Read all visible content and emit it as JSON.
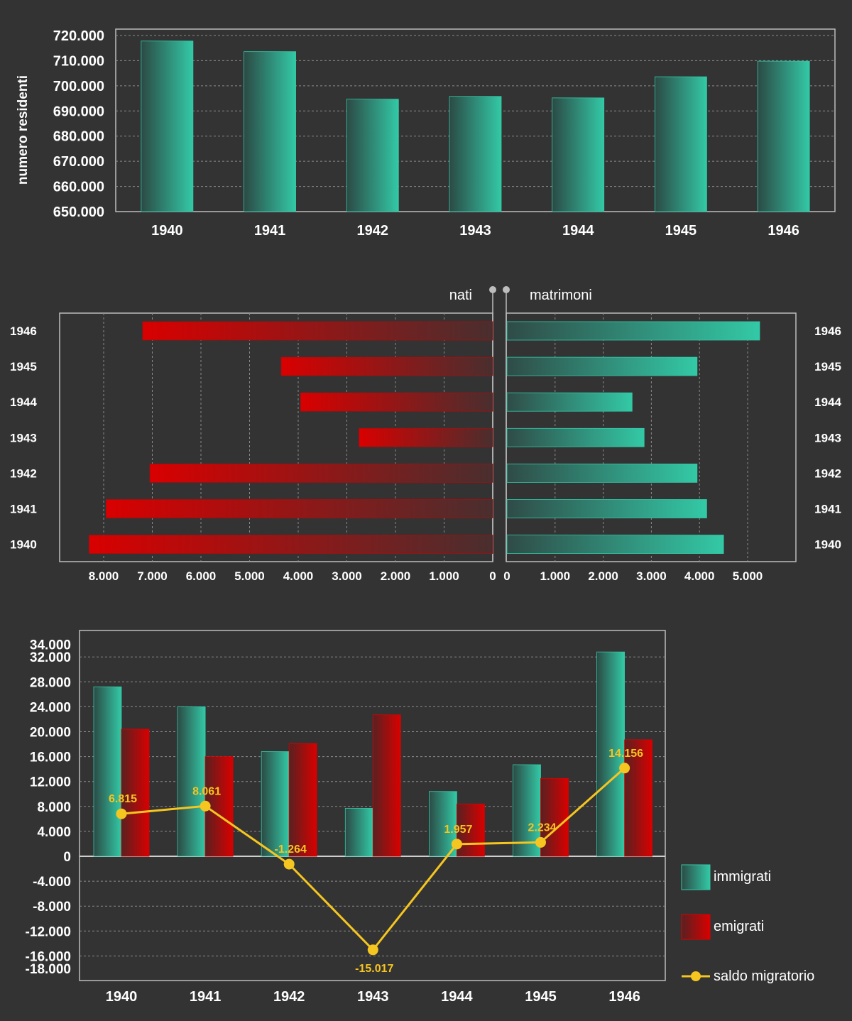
{
  "chart_data": [
    {
      "type": "bar",
      "ylabel": "numero residenti",
      "ylim": [
        650000,
        720000
      ],
      "yticks": [
        "720.000",
        "710.000",
        "700.000",
        "690.000",
        "680.000",
        "670.000",
        "660.000",
        "650.000"
      ],
      "ytick_values": [
        720000,
        710000,
        700000,
        690000,
        680000,
        670000,
        660000,
        650000
      ],
      "categories": [
        "1940",
        "1941",
        "1942",
        "1943",
        "1944",
        "1945",
        "1946"
      ],
      "values": [
        717800,
        713600,
        694700,
        695800,
        695200,
        703600,
        709800
      ],
      "grid": true,
      "colors": {
        "bar_light": "#33c9a6",
        "bar_dark": "#2b4a45"
      }
    },
    {
      "type": "bar",
      "orientation": "horizontal",
      "left_label": "nati",
      "right_label": "matrimoni",
      "categories": [
        "1946",
        "1945",
        "1944",
        "1943",
        "1942",
        "1941",
        "1940"
      ],
      "series": [
        {
          "name": "nati",
          "values": [
            7200,
            4350,
            3950,
            2750,
            7050,
            7950,
            8300
          ]
        },
        {
          "name": "matrimoni",
          "values": [
            5250,
            3950,
            2600,
            2850,
            3950,
            4150,
            4500
          ]
        }
      ],
      "left_xticks": [
        "8.000",
        "7.000",
        "6.000",
        "5.000",
        "4.000",
        "3.000",
        "2.000",
        "1.000",
        "0"
      ],
      "left_xtick_values": [
        8000,
        7000,
        6000,
        5000,
        4000,
        3000,
        2000,
        1000,
        0
      ],
      "right_xticks": [
        "0",
        "1.000",
        "2.000",
        "3.000",
        "4.000",
        "5.000"
      ],
      "right_xtick_values": [
        0,
        1000,
        2000,
        3000,
        4000,
        5000
      ],
      "left_xlim": [
        0,
        9000
      ],
      "right_xlim": [
        0,
        6000
      ],
      "grid": true,
      "colors": {
        "red_light": "#d90000",
        "red_dark": "#552b2b",
        "teal_light": "#33c9a6",
        "teal_dark": "#2b4a45"
      }
    },
    {
      "type": "bar",
      "categories": [
        "1940",
        "1941",
        "1942",
        "1943",
        "1944",
        "1945",
        "1946"
      ],
      "series": [
        {
          "name": "immigrati",
          "values": [
            27200,
            24000,
            16800,
            7700,
            10400,
            14700,
            32800
          ]
        },
        {
          "name": "emigrati",
          "values": [
            20400,
            16000,
            18100,
            22700,
            8400,
            12500,
            18700
          ]
        },
        {
          "name": "saldo migratorio",
          "type": "line",
          "values": [
            6815,
            8061,
            -1264,
            -15017,
            1957,
            2234,
            14156
          ],
          "labels": [
            "6.815",
            "8.061",
            "-1.264",
            "-15.017",
            "1.957",
            "2.234",
            "14.156"
          ]
        }
      ],
      "ylim": [
        -18000,
        34000
      ],
      "yticks": [
        "34.000",
        "32.000",
        "28.000",
        "24.000",
        "20.000",
        "16.000",
        "12.000",
        "8.000",
        "4.000",
        "0",
        "-4.000",
        "-8.000",
        "-12.000",
        "-16.000",
        "-18.000"
      ],
      "ytick_values": [
        34000,
        32000,
        28000,
        24000,
        20000,
        16000,
        12000,
        8000,
        4000,
        0,
        -4000,
        -8000,
        -12000,
        -16000,
        -18000
      ],
      "legend": [
        {
          "label": "immigrati",
          "kind": "teal-box"
        },
        {
          "label": "emigrati",
          "kind": "red-box"
        },
        {
          "label": "saldo migratorio",
          "kind": "yellow-line"
        }
      ],
      "legend_position": "right",
      "grid": true,
      "colors": {
        "line": "#f5c520",
        "teal_light": "#33c9a6",
        "red_light": "#d90000"
      }
    }
  ]
}
